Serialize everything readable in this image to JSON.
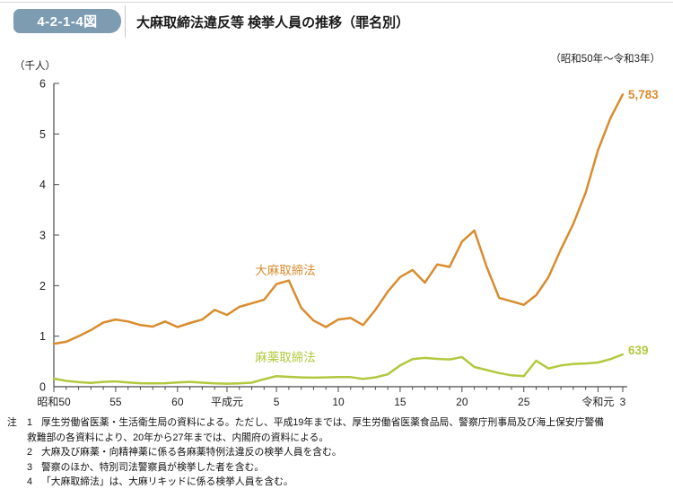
{
  "header": {
    "figure_label": "4-2-1-4図",
    "title": "大麻取締法違反等 検挙人員の推移（罪名別）"
  },
  "period_label": "（昭和50年～令和3年）",
  "chart_data": {
    "type": "line",
    "title": "大麻取締法違反等 検挙人員の推移（罪名別）",
    "unit_label": "（千人）",
    "ylabel": "検挙人員（千人）",
    "ylim": [
      0,
      6
    ],
    "yticks": [
      0,
      1,
      2,
      3,
      4,
      5,
      6
    ],
    "grid": false,
    "legend_position": "inline-labels",
    "years": [
      1975,
      1976,
      1977,
      1978,
      1979,
      1980,
      1981,
      1982,
      1983,
      1984,
      1985,
      1986,
      1987,
      1988,
      1989,
      1990,
      1991,
      1992,
      1993,
      1994,
      1995,
      1996,
      1997,
      1998,
      1999,
      2000,
      2001,
      2002,
      2003,
      2004,
      2005,
      2006,
      2007,
      2008,
      2009,
      2010,
      2011,
      2012,
      2013,
      2014,
      2015,
      2016,
      2017,
      2018,
      2019,
      2020,
      2021
    ],
    "x_tick_labels": [
      {
        "year": 1975,
        "label": "昭和50"
      },
      {
        "year": 1980,
        "label": "55"
      },
      {
        "year": 1985,
        "label": "60"
      },
      {
        "year": 1989,
        "label": "平成元"
      },
      {
        "year": 1993,
        "label": "5"
      },
      {
        "year": 1998,
        "label": "10"
      },
      {
        "year": 2003,
        "label": "15"
      },
      {
        "year": 2008,
        "label": "20"
      },
      {
        "year": 2013,
        "label": "25"
      },
      {
        "year": 2019,
        "label": "令和元"
      },
      {
        "year": 2021,
        "label": "3"
      }
    ],
    "series": [
      {
        "name": "大麻取締法",
        "key": "cannabis-control-act",
        "color": "#d98c2e",
        "end_label": "5,783",
        "values": [
          850,
          890,
          1000,
          1120,
          1270,
          1330,
          1290,
          1220,
          1190,
          1290,
          1180,
          1260,
          1330,
          1520,
          1420,
          1580,
          1650,
          1720,
          2030,
          2100,
          1560,
          1310,
          1180,
          1330,
          1360,
          1220,
          1520,
          1880,
          2170,
          2310,
          2060,
          2420,
          2370,
          2870,
          3090,
          2370,
          1760,
          1690,
          1620,
          1810,
          2170,
          2720,
          3220,
          3840,
          4680,
          5310,
          5783
        ]
      },
      {
        "name": "麻薬取締法",
        "key": "narcotics-control-act",
        "color": "#b2c93e",
        "end_label": "639",
        "values": [
          160,
          115,
          90,
          75,
          95,
          105,
          85,
          70,
          65,
          70,
          85,
          95,
          80,
          65,
          60,
          65,
          80,
          150,
          210,
          195,
          185,
          180,
          185,
          190,
          190,
          155,
          185,
          245,
          420,
          545,
          570,
          550,
          540,
          585,
          390,
          330,
          270,
          225,
          210,
          515,
          360,
          420,
          450,
          460,
          480,
          545,
          639
        ]
      }
    ]
  },
  "notes": {
    "marker": "注",
    "items": [
      {
        "no": "1",
        "lines": [
          "厚生労働省医薬・生活衛生局の資料による。ただし、平成19年までは、厚生労働省医薬食品局、警察庁刑事局及び海上保安庁警備",
          "救難部の各資料により、20年から27年までは、内閣府の資料による。"
        ]
      },
      {
        "no": "2",
        "lines": [
          "大麻及び麻薬・向精神薬に係る各麻薬特例法違反の検挙人員を含む。"
        ]
      },
      {
        "no": "3",
        "lines": [
          "警察のほか、特別司法警察員が検挙した者を含む。"
        ]
      },
      {
        "no": "4",
        "lines": [
          "「大麻取締法」は、大麻リキッドに係る検挙人員を含む。"
        ]
      }
    ]
  }
}
